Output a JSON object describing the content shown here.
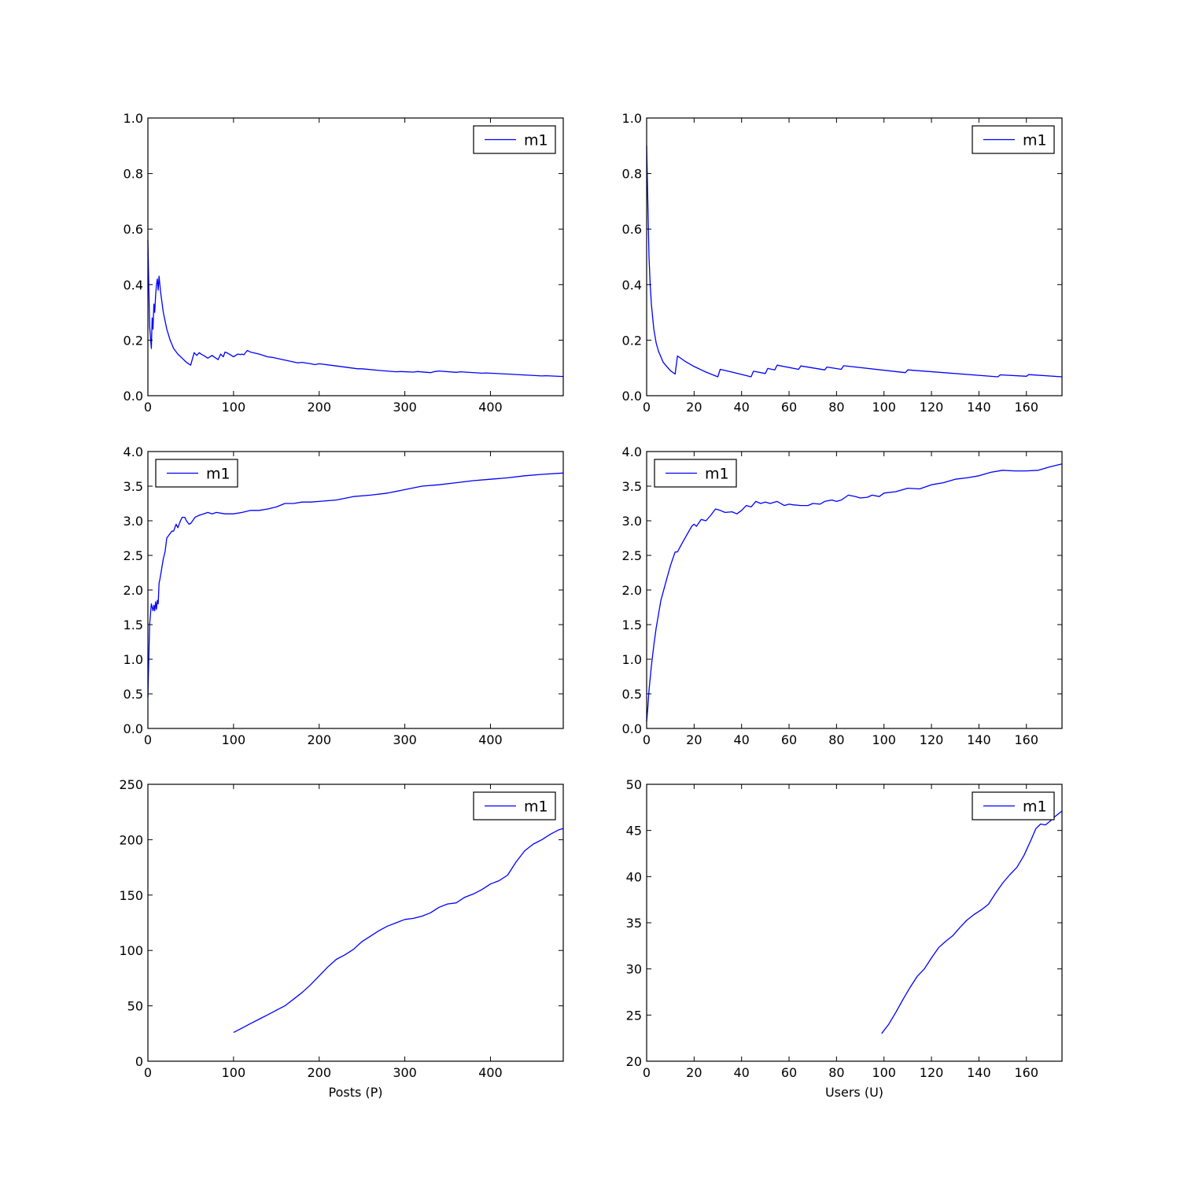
{
  "figure": {
    "line_color": "#0000ff",
    "axes_color": "#000000",
    "background": "#ffffff"
  },
  "chart_data": [
    {
      "type": "line",
      "title": "",
      "xlabel": "",
      "ylabel": "",
      "xlim": [
        0,
        485
      ],
      "ylim": [
        0,
        1.0
      ],
      "xticks": [
        0,
        100,
        200,
        300,
        400
      ],
      "yticks": [
        0.0,
        0.2,
        0.4,
        0.6,
        0.8,
        1.0
      ],
      "legend": "top-right",
      "series": [
        {
          "name": "m1",
          "x": [
            0,
            2,
            4,
            5,
            6,
            7,
            8,
            9,
            10,
            11,
            12,
            13,
            14,
            15,
            18,
            22,
            26,
            30,
            35,
            40,
            45,
            50,
            54,
            57,
            60,
            62,
            65,
            70,
            75,
            78,
            82,
            85,
            88,
            90,
            92,
            95,
            100,
            105,
            108,
            110,
            112,
            116,
            120,
            130,
            140,
            145,
            160,
            175,
            180,
            190,
            195,
            200,
            220,
            245,
            250,
            270,
            290,
            295,
            310,
            315,
            330,
            335,
            340,
            360,
            365,
            390,
            395,
            420,
            460,
            465,
            485
          ],
          "y": [
            0.56,
            0.25,
            0.17,
            0.28,
            0.24,
            0.33,
            0.3,
            0.36,
            0.4,
            0.42,
            0.38,
            0.43,
            0.4,
            0.37,
            0.3,
            0.24,
            0.2,
            0.17,
            0.15,
            0.135,
            0.12,
            0.11,
            0.155,
            0.145,
            0.155,
            0.15,
            0.145,
            0.135,
            0.145,
            0.138,
            0.13,
            0.15,
            0.14,
            0.157,
            0.155,
            0.15,
            0.14,
            0.15,
            0.148,
            0.15,
            0.147,
            0.163,
            0.157,
            0.15,
            0.14,
            0.138,
            0.128,
            0.118,
            0.12,
            0.115,
            0.112,
            0.115,
            0.107,
            0.097,
            0.097,
            0.091,
            0.086,
            0.087,
            0.085,
            0.087,
            0.083,
            0.087,
            0.089,
            0.084,
            0.086,
            0.081,
            0.082,
            0.078,
            0.071,
            0.072,
            0.069
          ]
        }
      ]
    },
    {
      "type": "line",
      "title": "",
      "xlabel": "",
      "ylabel": "",
      "xlim": [
        0,
        175
      ],
      "ylim": [
        0,
        1.0
      ],
      "xticks": [
        0,
        20,
        40,
        60,
        80,
        100,
        120,
        140,
        160
      ],
      "yticks": [
        0.0,
        0.2,
        0.4,
        0.6,
        0.8,
        1.0
      ],
      "legend": "top-right",
      "series": [
        {
          "name": "m1",
          "x": [
            0,
            0.5,
            1,
            1.5,
            2,
            3,
            4,
            5,
            6,
            7,
            8,
            10,
            12,
            13,
            16,
            20,
            25,
            30,
            31,
            36,
            44,
            45,
            50,
            51,
            54,
            55,
            64,
            65,
            75,
            76,
            82,
            83,
            109,
            110,
            148,
            149,
            160,
            161,
            175
          ],
          "y": [
            0.9,
            0.7,
            0.5,
            0.4,
            0.33,
            0.24,
            0.19,
            0.16,
            0.14,
            0.12,
            0.11,
            0.09,
            0.078,
            0.143,
            0.125,
            0.105,
            0.085,
            0.068,
            0.095,
            0.085,
            0.068,
            0.088,
            0.08,
            0.098,
            0.093,
            0.11,
            0.095,
            0.107,
            0.093,
            0.103,
            0.095,
            0.108,
            0.083,
            0.093,
            0.068,
            0.075,
            0.07,
            0.076,
            0.068
          ]
        }
      ]
    },
    {
      "type": "line",
      "title": "",
      "xlabel": "",
      "ylabel": "",
      "xlim": [
        0,
        485
      ],
      "ylim": [
        0,
        4.0
      ],
      "xticks": [
        0,
        100,
        200,
        300,
        400
      ],
      "yticks": [
        0.0,
        0.5,
        1.0,
        1.5,
        2.0,
        2.5,
        3.0,
        3.5,
        4.0
      ],
      "legend": "top-left",
      "series": [
        {
          "name": "m1",
          "x": [
            0,
            2,
            4,
            6,
            7,
            8,
            9,
            10,
            11,
            12,
            13,
            14,
            16,
            18,
            20,
            22,
            25,
            28,
            30,
            33,
            35,
            38,
            40,
            43,
            45,
            48,
            50,
            55,
            60,
            65,
            70,
            75,
            80,
            90,
            100,
            110,
            120,
            130,
            140,
            150,
            160,
            170,
            180,
            190,
            200,
            220,
            240,
            260,
            280,
            300,
            320,
            340,
            360,
            380,
            400,
            420,
            440,
            460,
            485
          ],
          "y": [
            0.45,
            1.5,
            1.8,
            1.7,
            1.78,
            1.7,
            1.83,
            1.72,
            1.85,
            1.8,
            2.1,
            2.15,
            2.3,
            2.45,
            2.55,
            2.75,
            2.8,
            2.85,
            2.85,
            2.95,
            2.9,
            3.0,
            3.05,
            3.05,
            3.0,
            2.95,
            2.96,
            3.05,
            3.08,
            3.1,
            3.12,
            3.1,
            3.12,
            3.1,
            3.1,
            3.12,
            3.15,
            3.15,
            3.17,
            3.2,
            3.25,
            3.25,
            3.27,
            3.27,
            3.28,
            3.3,
            3.35,
            3.37,
            3.4,
            3.45,
            3.5,
            3.52,
            3.55,
            3.58,
            3.6,
            3.62,
            3.65,
            3.67,
            3.69
          ]
        }
      ]
    },
    {
      "type": "line",
      "title": "",
      "xlabel": "",
      "ylabel": "",
      "xlim": [
        0,
        175
      ],
      "ylim": [
        0,
        4.0
      ],
      "xticks": [
        0,
        20,
        40,
        60,
        80,
        100,
        120,
        140,
        160
      ],
      "yticks": [
        0.0,
        0.5,
        1.0,
        1.5,
        2.0,
        2.5,
        3.0,
        3.5,
        4.0
      ],
      "legend": "top-left",
      "series": [
        {
          "name": "m1",
          "x": [
            0,
            0.5,
            1,
            2,
            3,
            4,
            5,
            6,
            8,
            10,
            12,
            13,
            15,
            17,
            19,
            20,
            21,
            23,
            25,
            27,
            29,
            31,
            33,
            36,
            38,
            40,
            42,
            44,
            46,
            48,
            50,
            52,
            55,
            58,
            60,
            62,
            65,
            68,
            70,
            73,
            75,
            78,
            80,
            82,
            85,
            88,
            90,
            93,
            95,
            98,
            100,
            105,
            110,
            115,
            120,
            125,
            130,
            135,
            140,
            145,
            150,
            155,
            160,
            165,
            170,
            175
          ],
          "y": [
            0.1,
            0.3,
            0.55,
            0.9,
            1.2,
            1.45,
            1.65,
            1.85,
            2.1,
            2.35,
            2.55,
            2.55,
            2.68,
            2.8,
            2.92,
            2.95,
            2.92,
            3.02,
            3.0,
            3.08,
            3.17,
            3.15,
            3.12,
            3.13,
            3.1,
            3.15,
            3.22,
            3.2,
            3.28,
            3.25,
            3.27,
            3.25,
            3.28,
            3.22,
            3.24,
            3.23,
            3.22,
            3.22,
            3.25,
            3.24,
            3.28,
            3.3,
            3.28,
            3.3,
            3.37,
            3.35,
            3.33,
            3.34,
            3.37,
            3.35,
            3.4,
            3.42,
            3.47,
            3.46,
            3.52,
            3.55,
            3.6,
            3.62,
            3.65,
            3.7,
            3.73,
            3.72,
            3.72,
            3.73,
            3.78,
            3.82
          ]
        }
      ]
    },
    {
      "type": "line",
      "title": "",
      "xlabel": "Posts (P)",
      "ylabel": "",
      "xlim": [
        0,
        485
      ],
      "ylim": [
        0,
        250
      ],
      "xticks": [
        0,
        100,
        200,
        300,
        400
      ],
      "yticks": [
        0,
        50,
        100,
        150,
        200,
        250
      ],
      "legend": "top-right",
      "series": [
        {
          "name": "m1",
          "x": [
            100,
            110,
            120,
            130,
            140,
            150,
            160,
            170,
            180,
            190,
            200,
            210,
            220,
            230,
            240,
            250,
            260,
            270,
            280,
            290,
            300,
            310,
            320,
            330,
            340,
            350,
            360,
            370,
            380,
            390,
            400,
            410,
            420,
            430,
            440,
            450,
            460,
            470,
            480,
            485
          ],
          "y": [
            26,
            30,
            34,
            38,
            42,
            46,
            50,
            56,
            62,
            69,
            77,
            85,
            92,
            96,
            101,
            108,
            113,
            118,
            122,
            125,
            128,
            129,
            131,
            134,
            139,
            142,
            143,
            148,
            151,
            155,
            160,
            163,
            168,
            180,
            190,
            196,
            200,
            205,
            209,
            210
          ]
        }
      ]
    },
    {
      "type": "line",
      "title": "",
      "xlabel": "Users (U)",
      "ylabel": "",
      "xlim": [
        0,
        175
      ],
      "ylim": [
        20,
        50
      ],
      "xticks": [
        0,
        20,
        40,
        60,
        80,
        100,
        120,
        140,
        160
      ],
      "yticks": [
        20,
        25,
        30,
        35,
        40,
        45,
        50
      ],
      "legend": "top-right",
      "series": [
        {
          "name": "m1",
          "x": [
            99,
            102,
            105,
            108,
            111,
            114,
            117,
            120,
            123,
            126,
            129,
            132,
            135,
            138,
            141,
            144,
            147,
            150,
            153,
            156,
            159,
            162,
            164,
            166,
            168,
            170,
            172,
            175
          ],
          "y": [
            23.0,
            24.0,
            25.3,
            26.7,
            28.0,
            29.2,
            30.0,
            31.2,
            32.3,
            33.0,
            33.6,
            34.5,
            35.3,
            35.9,
            36.4,
            37.0,
            38.2,
            39.3,
            40.2,
            41.0,
            42.3,
            44.0,
            45.2,
            45.7,
            45.6,
            46.0,
            46.5,
            47.1
          ]
        }
      ]
    }
  ]
}
